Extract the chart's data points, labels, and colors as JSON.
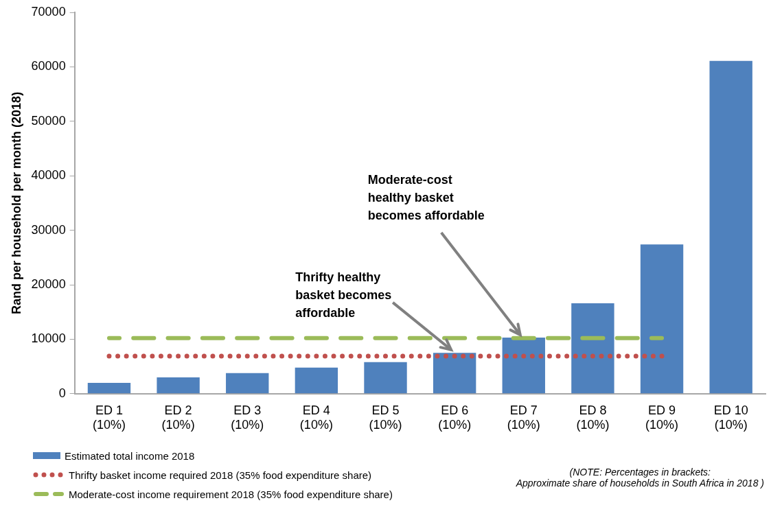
{
  "chart_data": {
    "type": "bar",
    "ylabel": "Rand per household per month (2018)",
    "categories": [
      "ED 1\n(10%)",
      "ED 2\n(10%)",
      "ED 3\n(10%)",
      "ED 4\n(10%)",
      "ED 5\n(10%)",
      "ED 6\n(10%)",
      "ED 7\n(10%)",
      "ED 8\n(10%)",
      "ED 9\n(10%)",
      "ED 10\n(10%)"
    ],
    "series": [
      {
        "name": "Estimated total income 2018",
        "color": "#4f81bd",
        "values": [
          2000,
          3000,
          3800,
          4800,
          5800,
          7500,
          10300,
          16600,
          27400,
          61100
        ]
      },
      {
        "name": "Thrifty basket income required 2018 (35% food expenditure share)",
        "type": "line",
        "color": "#c0504d",
        "line_style": "dotted",
        "marker": "none",
        "values": [
          6900,
          6900,
          6900,
          6900,
          6900,
          6900,
          6900,
          6900,
          6900,
          null
        ]
      },
      {
        "name": "Moderate-cost income requirement 2018 (35% food expenditure share)",
        "type": "line",
        "color": "#9bbb59",
        "line_style": "dashed",
        "marker": "none",
        "values": [
          10200,
          10200,
          10200,
          10200,
          10200,
          10200,
          10200,
          10200,
          10200,
          null
        ]
      }
    ],
    "ylim": [
      0,
      70000
    ],
    "yticks": [
      0,
      10000,
      20000,
      30000,
      40000,
      50000,
      60000,
      70000
    ],
    "grid": false,
    "legend": "bottom left",
    "annotations": [
      {
        "text": "Thrifty healthy\nbasket becomes\naffordable",
        "x": "ED 6\n(10%)",
        "y": 7550
      },
      {
        "text": "Moderate-cost\nhealthy basket\nbecomes affordable",
        "x": "ED 7\n(10%)",
        "y": 10300
      },
      "(NOTE: Percentages in brackets:\nApproximate share of households in South Africa in 2018 )"
    ]
  }
}
